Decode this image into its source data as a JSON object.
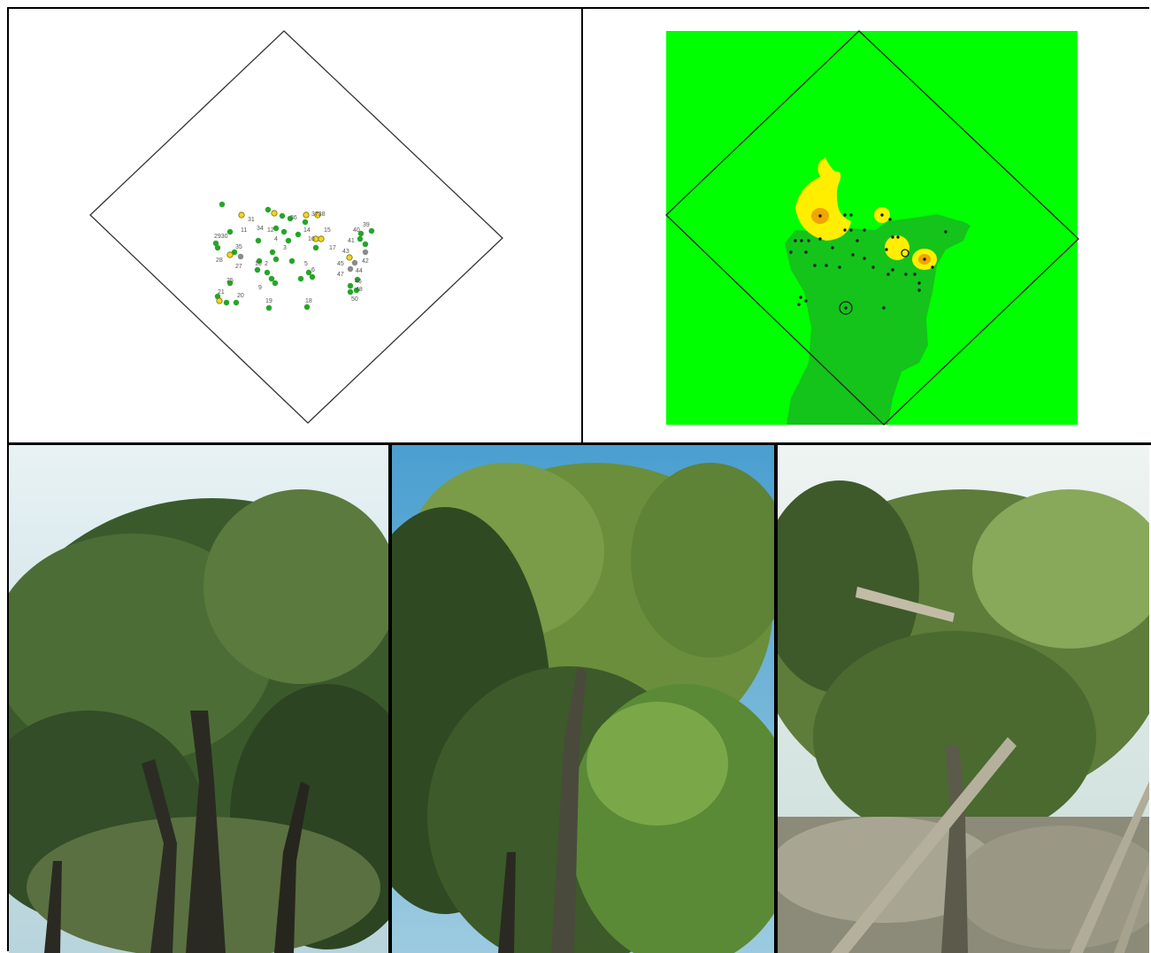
{
  "map_panel": {
    "labels": [
      "31",
      "36",
      "3738",
      "11",
      "34",
      "12",
      "14",
      "15",
      "39",
      "40",
      "2930",
      "35",
      "4",
      "16",
      "41",
      "28",
      "27",
      "3",
      "17",
      "43",
      "10",
      "2",
      "45",
      "42",
      "5",
      "6",
      "44",
      "47",
      "9",
      "25",
      "46",
      "48",
      "21",
      "20",
      "50",
      "19",
      "18"
    ],
    "colors": {
      "green": "#25a528",
      "yellow": "#f3d51c",
      "gray": "#8a8a8a",
      "outline": "#333333"
    }
  },
  "raster_panel": {
    "colors": {
      "background": "#00ff00",
      "darker_zone": "#14c41a",
      "yellow": "#ffee00",
      "orange": "#f2a400"
    }
  },
  "photos": [
    {
      "subject": "oak canopy photo 1"
    },
    {
      "subject": "oak canopy photo 2"
    },
    {
      "subject": "oak canopy photo 3"
    }
  ]
}
